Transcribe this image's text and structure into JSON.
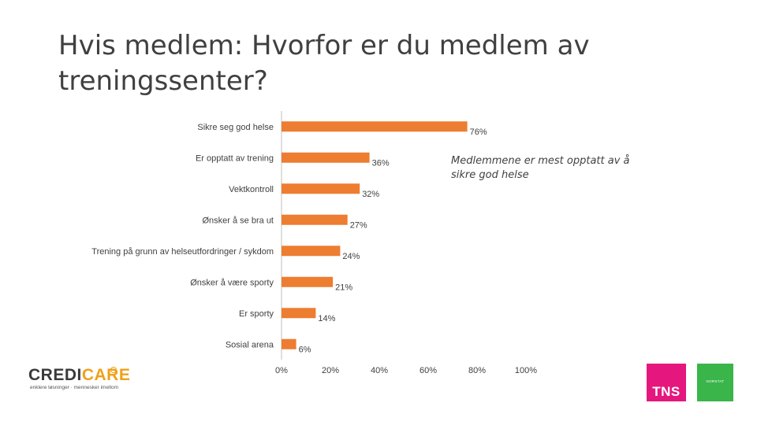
{
  "title": {
    "line1": "Hvis medlem: Hvorfor er du medlem av",
    "line2": "treningssenter?"
  },
  "annotation": "Medlemmene er mest opptatt av å sikre god helse",
  "colors": {
    "bar": "#ed7d31",
    "axis": "#bfbfbf",
    "text": "#404040"
  },
  "chart_data": {
    "type": "bar",
    "orientation": "horizontal",
    "categories": [
      "Sikre seg god helse",
      "Er opptatt av trening",
      "Vektkontroll",
      "Ønsker å se bra ut",
      "Trening på grunn av helseutfordringer / sykdom",
      "Ønsker å være sporty",
      "Er sporty",
      "Sosial arena"
    ],
    "values": [
      76,
      36,
      32,
      27,
      24,
      21,
      14,
      6
    ],
    "value_labels": [
      "76%",
      "36%",
      "32%",
      "27%",
      "24%",
      "21%",
      "14%",
      "6%"
    ],
    "xlim": [
      0,
      100
    ],
    "xticks": [
      "0%",
      "20%",
      "40%",
      "60%",
      "80%",
      "100%"
    ],
    "grid": false,
    "legend": "none"
  },
  "logos": {
    "credicare": {
      "part1": "CREDI",
      "part2": "CARE",
      "tagline": "enklere løsninger · mennesker imellom"
    },
    "tns": {
      "text": "TNS"
    },
    "partner": {
      "text": "NORSTAT"
    }
  }
}
